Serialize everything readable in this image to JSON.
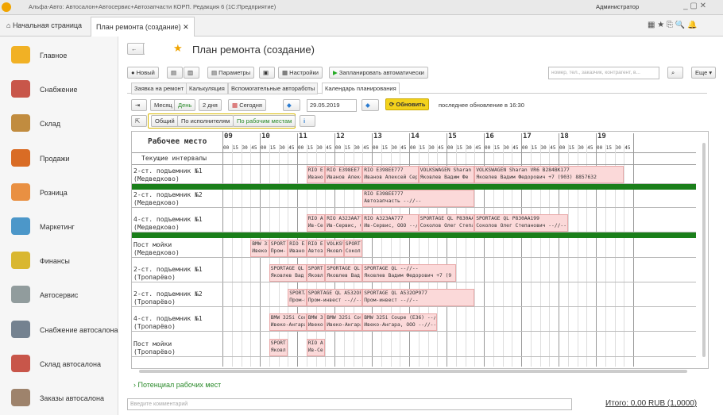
{
  "window_title": "Альфа-Авто: Автосалон+Автосервис+Автозапчасти КОРП. Редакция 6 (1С:Предприятие)",
  "user": "Администратор",
  "tabs": [
    "Начальная страница",
    "План ремонта (создание)"
  ],
  "sidebar": [
    "Главное",
    "Снабжение",
    "Склад",
    "Продажи",
    "Розница",
    "Маркетинг",
    "Финансы",
    "Автосервис",
    "Снабжение автосалона",
    "Склад автосалона",
    "Заказы автосалона"
  ],
  "page_title": "План ремонта (создание)",
  "toolbar": {
    "new": "Новый",
    "params": "Параметры",
    "settings": "Настройки",
    "auto": "Запланировать автоматически",
    "search": "номер, тел., заказчик, контрагент, в...",
    "more": "Еще"
  },
  "subtabs": [
    "Заявка на ремонт",
    "Калькуляция",
    "Вспомогательные автоработы",
    "Календарь планирования"
  ],
  "calendar": {
    "modes": [
      "Месяц",
      "День",
      "2 дня"
    ],
    "today": "Сегодня",
    "date": "29.05.2019",
    "refresh": "Обновить",
    "last_update": "последнее обновление в 16:30",
    "views": [
      "Общий",
      "По исполнителям",
      "По рабочим местам"
    ],
    "column_header": "Рабочее место",
    "hours": [
      "09",
      "10",
      "11",
      "12",
      "13",
      "14",
      "15",
      "16",
      "17",
      "18",
      "19"
    ],
    "minutes": [
      "00",
      "15",
      "30",
      "45"
    ],
    "current_intervals": "Текущие интервалы",
    "rows": [
      {
        "name": [
          "2-ст. подъемник №1",
          "(Медведково)"
        ],
        "bookings": [
          [
            "RIO E",
            "Иванов"
          ],
          [
            "RIO E398EE7",
            "Иванов Алекс"
          ],
          [
            "RIO E398EE777",
            "Иванов Алексей Сер"
          ],
          [
            "VOLKSWAGEN Sharan",
            "Яковлев Вадим Фе"
          ],
          [
            "VOLKSWAGEN Sharan VR6 В284ВК177",
            "Яковлев Вадим Федорович +7 (903) 8857632"
          ]
        ]
      },
      {
        "name": [
          "2-ст. подъемник №2",
          "(Медведково)"
        ],
        "bookings": [
          [
            "RIO E398EE777",
            "Автозапчасть --//--"
          ]
        ]
      },
      {
        "name": [
          "4-ст. подъемник №1",
          "(Медведково)"
        ],
        "bookings": [
          [
            "RIO A3",
            "Ив-Серв"
          ],
          [
            "RIO A323AA77",
            "Ив-Сервис, О"
          ],
          [
            "RIO A323AA777",
            "Ив-Сервис, ООО --//--"
          ],
          [
            "SPORTAGE QL P830AA",
            "Соколов Олег Степа"
          ],
          [
            "SPORTAGE QL P830AA199",
            "Соколов Олег Степанович --//--"
          ]
        ]
      },
      {
        "name": [
          "Пост мойки",
          "(Медведково)"
        ],
        "bookings": [
          [
            "BMW 32",
            "Ивеко-А"
          ],
          [
            "SPORTA",
            "Пром-и"
          ],
          [
            "RIO E3",
            "Иванов"
          ],
          [
            "RIO E3",
            "Автоза"
          ],
          [
            "VOLKSW",
            "Яковле"
          ],
          [
            "SPORTA",
            "Соколо"
          ]
        ]
      },
      {
        "name": [
          "2-ст. подъемник №1",
          "(Тропарёво)"
        ],
        "bookings": [
          [
            "SPORTAGE QL",
            "Яковлев Вад"
          ],
          [
            "SPORTA",
            "Яковле"
          ],
          [
            "SPORTAGE QL",
            "Яковлев Вад"
          ],
          [
            "SPORTAGE QL --//--",
            "Яковлев Вадим Федорович +7 (9"
          ]
        ]
      },
      {
        "name": [
          "2-ст. подъемник №2",
          "(Тропарёво)"
        ],
        "bookings": [
          [
            "SPORTA",
            "Пром-и"
          ],
          [
            "SPORTAGE QL A532OP",
            "Пром-инвест --//--"
          ],
          [
            "SPORTAGE QL A532OP977",
            "Пром-инвест --//--"
          ]
        ]
      },
      {
        "name": [
          "4-ст. подъемник №1",
          "(Тропарёво)"
        ],
        "bookings": [
          [
            "BMW 325i Cou",
            "Ивеко-Ангара"
          ],
          [
            "BMW 32",
            "Ивеко-"
          ],
          [
            "BMW 325i Cou",
            "Ивеко-Ангара"
          ],
          [
            "BMW 325i Coupe (E36) --//--",
            "Ивеко-Ангара, ООО --//--"
          ]
        ]
      },
      {
        "name": [
          "Пост мойки",
          "(Тропарёво)"
        ],
        "bookings": [
          [
            "SPORTA",
            "Яковле"
          ],
          [
            "RIO A3",
            "Ив-Сер"
          ]
        ]
      }
    ]
  },
  "footer": {
    "potential": "Потенциал рабочих мест",
    "comment": "Введите комментарий",
    "total": "Итого: 0,00 RUB (1,0000)"
  }
}
